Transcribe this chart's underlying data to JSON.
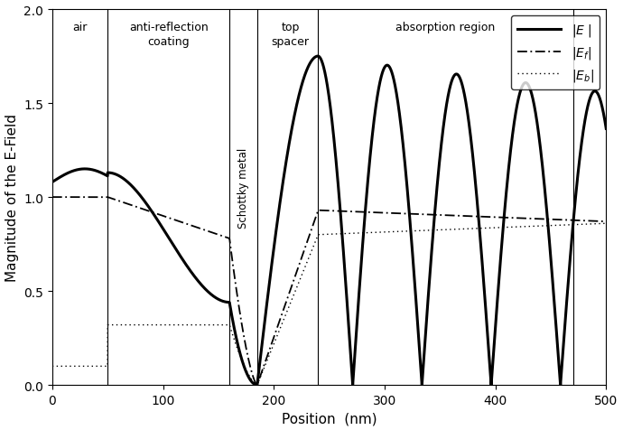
{
  "xlabel": "Position  (nm)",
  "ylabel": "Magnitude of the E-Field",
  "xlim": [
    0,
    500
  ],
  "ylim": [
    0,
    2
  ],
  "yticks": [
    0,
    0.5,
    1.0,
    1.5,
    2.0
  ],
  "xticks": [
    0,
    100,
    200,
    300,
    400,
    500
  ],
  "x_air_end": 50,
  "x_arc_end": 160,
  "x_schottky_start": 160,
  "x_schottky_end": 185,
  "x_spacer_end": 240,
  "x_absorb_end": 470,
  "vlines": [
    50,
    160,
    185,
    240,
    470
  ],
  "background_color": "#ffffff"
}
